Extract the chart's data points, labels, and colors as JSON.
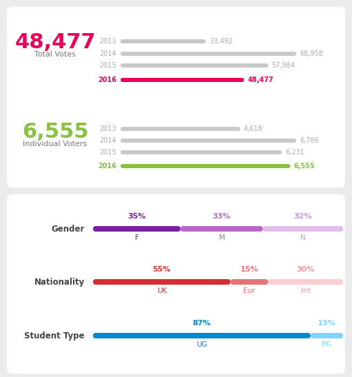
{
  "bg_color": "#ebebeb",
  "total_votes": "48,477",
  "total_votes_label": "Total Votes",
  "total_votes_color": "#e8005a",
  "individual_voters": "6,555",
  "individual_voters_label": "Individual Voters",
  "individual_voters_color": "#88c240",
  "votes_years": [
    "2013",
    "2014",
    "2015",
    "2016"
  ],
  "votes_values": [
    33492,
    68958,
    57984,
    48477
  ],
  "votes_max": 68958,
  "votes_highlight_color": "#e8005a",
  "votes_gray_color": "#c8c8c8",
  "voters_years": [
    "2013",
    "2014",
    "2015",
    "2016"
  ],
  "voters_values": [
    4618,
    6786,
    6231,
    6555
  ],
  "voters_max": 6786,
  "voters_highlight_color": "#88c240",
  "voters_gray_color": "#c8c8c8",
  "year_normal_color": "#aaaaaa",
  "val_normal_color": "#aaaaaa",
  "gender_label": "Gender",
  "gender_segments": [
    {
      "pct": "35%",
      "label": "F",
      "bar_color": "#7b1fa2",
      "text_color": "#7b1fa2"
    },
    {
      "pct": "33%",
      "label": "M",
      "bar_color": "#ba68c8",
      "text_color": "#ba68c8"
    },
    {
      "pct": "32%",
      "label": "N",
      "bar_color": "#e1bee7",
      "text_color": "#ce93d8"
    }
  ],
  "gender_values": [
    35,
    33,
    32
  ],
  "nationality_label": "Nationality",
  "nationality_segments": [
    {
      "pct": "55%",
      "label": "UK",
      "bar_color": "#d32f2f",
      "text_color": "#d32f2f"
    },
    {
      "pct": "15%",
      "label": "Eur",
      "bar_color": "#e57373",
      "text_color": "#e57373"
    },
    {
      "pct": "30%",
      "label": "Int",
      "bar_color": "#ffcdd2",
      "text_color": "#ef9a9a"
    }
  ],
  "nationality_values": [
    55,
    15,
    30
  ],
  "student_label": "Student Type",
  "student_segments": [
    {
      "pct": "87%",
      "label": "UG",
      "bar_color": "#0288d1",
      "text_color": "#0288d1"
    },
    {
      "pct": "13%",
      "label": "PG",
      "bar_color": "#81d4fa",
      "text_color": "#81d4fa"
    }
  ],
  "student_values": [
    87,
    13
  ]
}
